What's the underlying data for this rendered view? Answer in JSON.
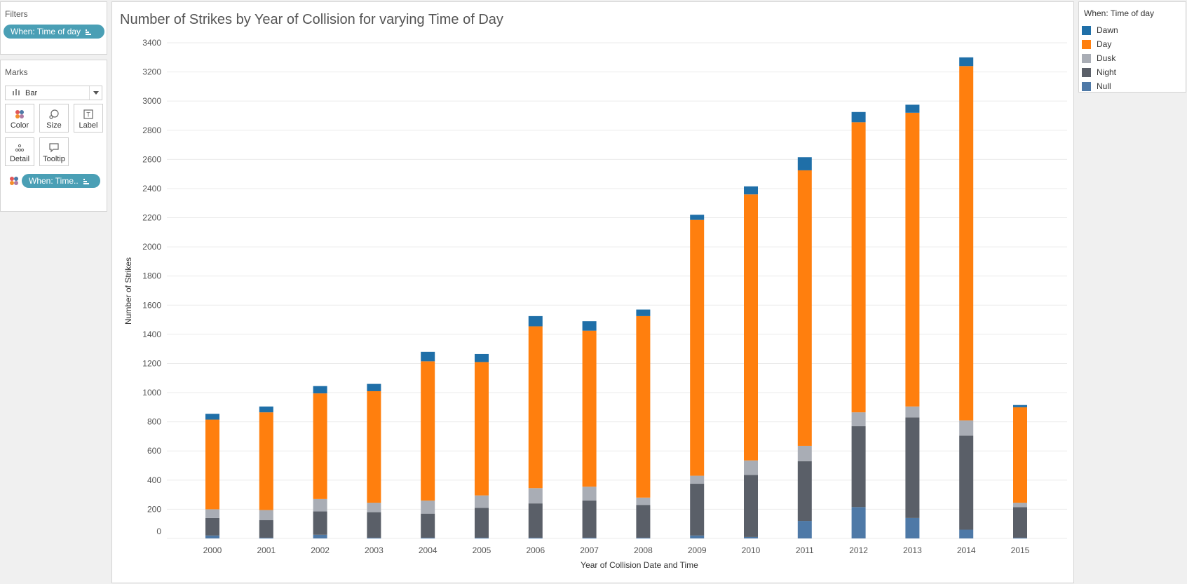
{
  "filters": {
    "title": "Filters",
    "pill_label": "When: Time of day"
  },
  "marks": {
    "title": "Marks",
    "mark_type": "Bar",
    "buttons": {
      "color": "Color",
      "size": "Size",
      "label": "Label",
      "detail": "Detail",
      "tooltip": "Tooltip"
    },
    "color_pill_label": "When: Time.."
  },
  "legend": {
    "title": "When: Time of day",
    "items": [
      {
        "label": "Dawn",
        "color": "#1f6fa8"
      },
      {
        "label": "Day",
        "color": "#ff7f0e"
      },
      {
        "label": "Dusk",
        "color": "#a9adb5"
      },
      {
        "label": "Night",
        "color": "#5a5f68"
      },
      {
        "label": "Null",
        "color": "#4e79a7"
      }
    ]
  },
  "chart_data": {
    "type": "bar",
    "stacked": true,
    "title": "Number of Strikes by Year of Collision for varying Time of Day",
    "xlabel": "Year of Collision Date and Time",
    "ylabel": "Number of Strikes",
    "ylim": [
      0,
      3400
    ],
    "yticks": [
      0,
      200,
      400,
      600,
      800,
      1000,
      1200,
      1400,
      1600,
      1800,
      2000,
      2200,
      2400,
      2600,
      2800,
      3000,
      3200,
      3400
    ],
    "grid": true,
    "legend_position": "right",
    "categories": [
      "2000",
      "2001",
      "2002",
      "2003",
      "2004",
      "2005",
      "2006",
      "2007",
      "2008",
      "2009",
      "2010",
      "2011",
      "2012",
      "2013",
      "2014",
      "2015"
    ],
    "series": [
      {
        "name": "Null",
        "color": "#4e79a7",
        "values": [
          20,
          5,
          25,
          5,
          5,
          5,
          5,
          5,
          5,
          20,
          10,
          120,
          215,
          140,
          60,
          5
        ]
      },
      {
        "name": "Night",
        "color": "#5a5f68",
        "values": [
          120,
          120,
          160,
          175,
          165,
          205,
          235,
          255,
          225,
          355,
          425,
          410,
          555,
          690,
          645,
          210
        ]
      },
      {
        "name": "Dusk",
        "color": "#a9adb5",
        "values": [
          60,
          70,
          85,
          65,
          90,
          85,
          105,
          95,
          50,
          55,
          100,
          105,
          95,
          75,
          105,
          30
        ]
      },
      {
        "name": "Day",
        "color": "#ff7f0e",
        "values": [
          615,
          670,
          725,
          765,
          955,
          915,
          1110,
          1070,
          1245,
          1755,
          1825,
          1890,
          1990,
          2015,
          2430,
          655
        ]
      },
      {
        "name": "Dawn",
        "color": "#1f6fa8",
        "values": [
          40,
          40,
          50,
          50,
          65,
          55,
          70,
          65,
          45,
          35,
          55,
          90,
          70,
          55,
          60,
          15
        ]
      }
    ]
  }
}
